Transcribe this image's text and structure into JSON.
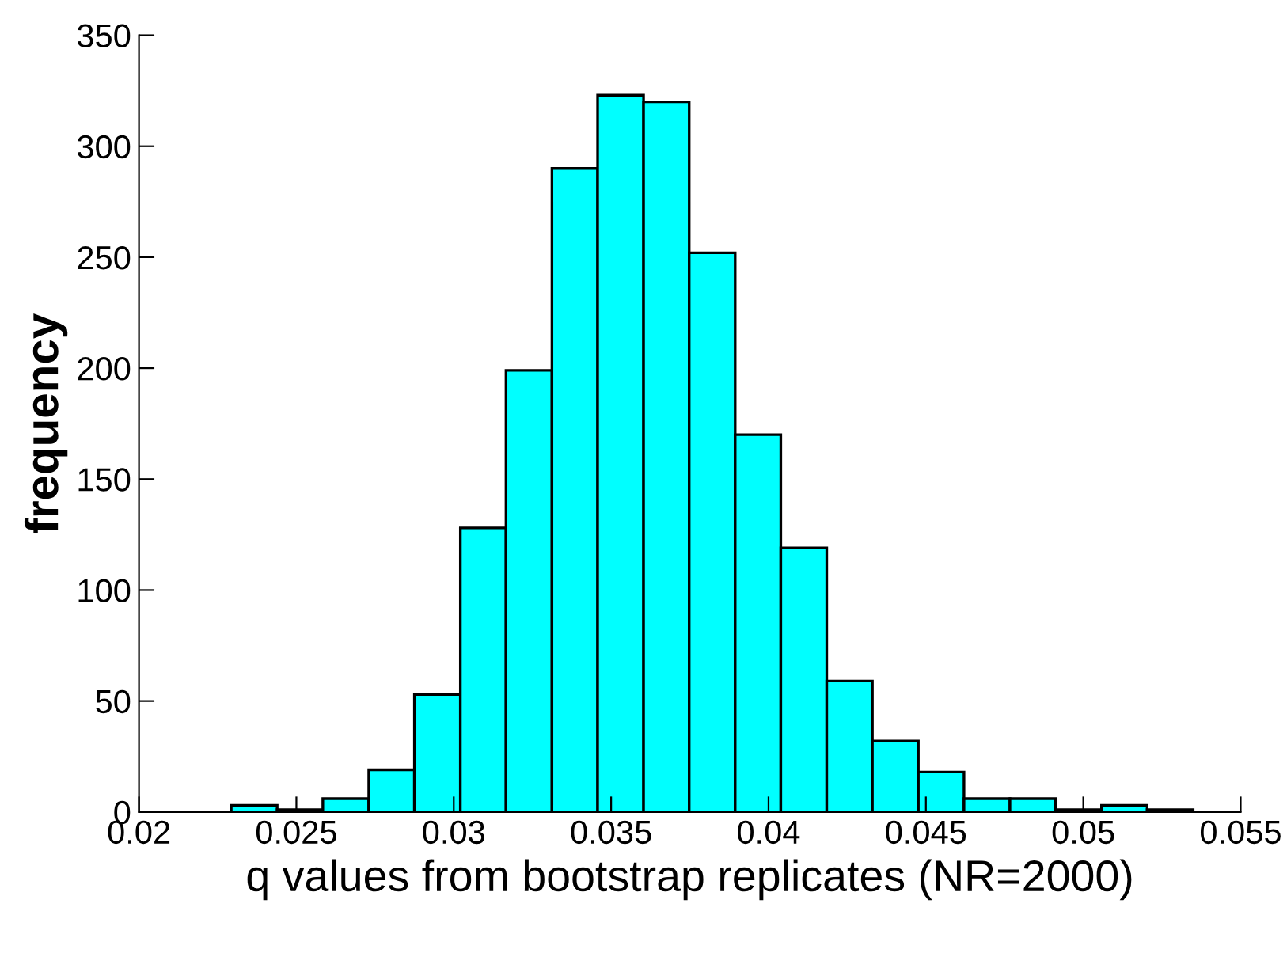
{
  "chart_data": {
    "type": "histogram",
    "xlabel": "q values from bootstrap replicates (NR=2000)",
    "ylabel": "frequency",
    "bins": [
      0.02293,
      0.02439,
      0.02584,
      0.0273,
      0.02875,
      0.03021,
      0.03166,
      0.03312,
      0.03457,
      0.03603,
      0.03748,
      0.03894,
      0.04039,
      0.04185,
      0.0433,
      0.04476,
      0.04621,
      0.04767,
      0.04912,
      0.05058,
      0.05203,
      0.05349
    ],
    "values": [
      3,
      1,
      6,
      19,
      53,
      128,
      199,
      290,
      323,
      320,
      252,
      170,
      119,
      59,
      32,
      18,
      6,
      6,
      1,
      3,
      1
    ],
    "color": "#00ffff",
    "xlim": [
      0.02,
      0.055
    ],
    "xticks": [
      0.02,
      0.025,
      0.03,
      0.035,
      0.04,
      0.045,
      0.05,
      0.055
    ],
    "ylim": [
      0,
      350
    ],
    "yticks": [
      0,
      50,
      100,
      150,
      200,
      250,
      300,
      350
    ],
    "grid": false
  }
}
